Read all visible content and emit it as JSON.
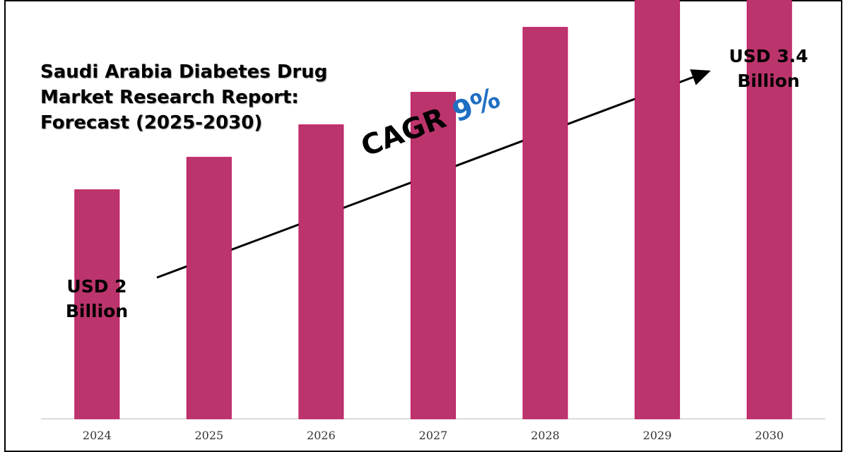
{
  "chart_data": {
    "type": "bar",
    "title": "Saudi Arabia Diabetes Drug Market Research Report: Forecast (2025-2030)",
    "categories": [
      "2024",
      "2025",
      "2026",
      "2027",
      "2028",
      "2029",
      "2030"
    ],
    "values": [
      2.0,
      2.2,
      2.4,
      2.6,
      3.0,
      3.2,
      3.4
    ],
    "unit": "USD Billion",
    "ylim": [
      0.6,
      3.6
    ],
    "grid": false,
    "bar_color": "#bc346c",
    "annotations": {
      "start_label_line1": "USD 2",
      "start_label_line2": "Billion",
      "end_label_line1": "USD 3.4",
      "end_label_line2": "Billion",
      "cagr_text": "CAGR",
      "cagr_value": "9%",
      "cagr_color": "#1f6fc2"
    }
  }
}
